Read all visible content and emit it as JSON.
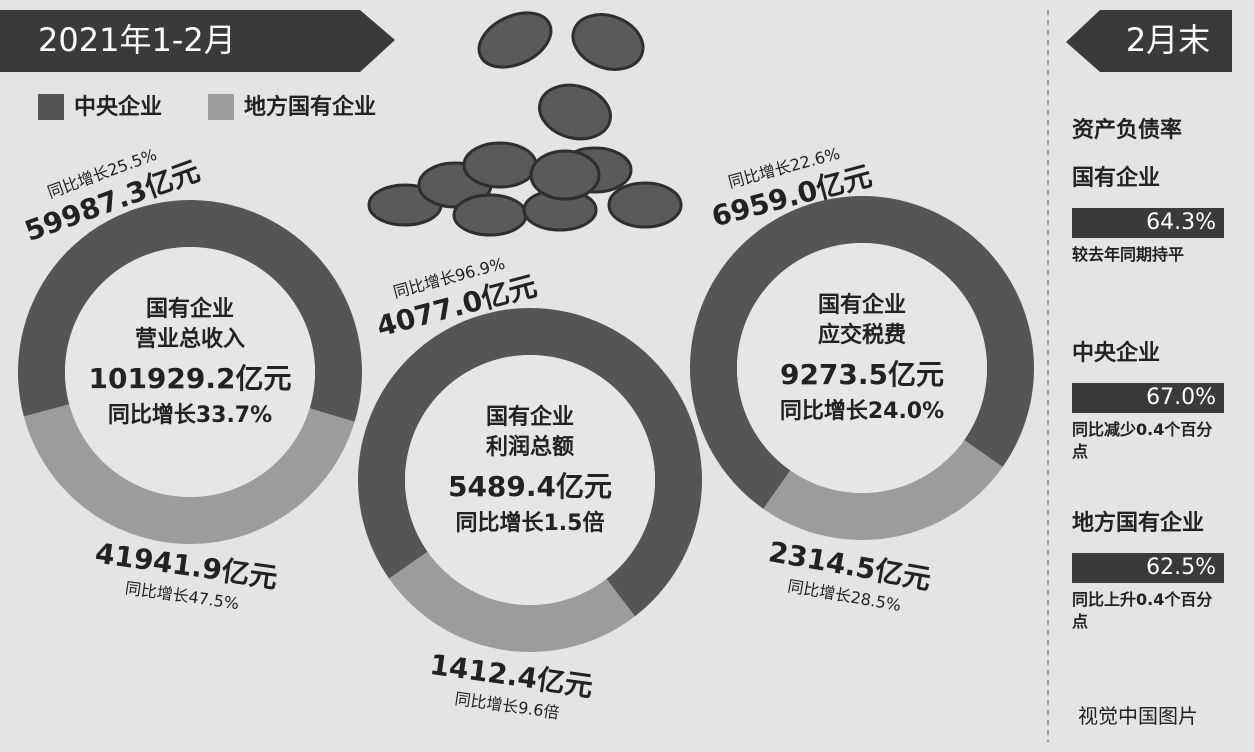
{
  "header": {
    "period": "2021年1-2月",
    "legend": [
      {
        "name": "中央企业",
        "color": "#555555"
      },
      {
        "name": "地方国有企业",
        "color": "#9c9c9c"
      }
    ]
  },
  "chart_data": [
    {
      "type": "donut",
      "title_lines": [
        "国有企业",
        "营业总收入"
      ],
      "total_label": "101929.2亿元",
      "total_growth": "同比增长33.7%",
      "values": [
        59987.3,
        41941.9
      ],
      "value_labels": [
        "59987.3亿元",
        "41941.9亿元"
      ],
      "growth_labels": [
        "同比增长25.5%",
        "同比增长47.5%"
      ]
    },
    {
      "type": "donut",
      "title_lines": [
        "国有企业",
        "利润总额"
      ],
      "total_label": "5489.4亿元",
      "total_growth": "同比增长1.5倍",
      "values": [
        4077.0,
        1412.4
      ],
      "value_labels": [
        "4077.0亿元",
        "1412.4亿元"
      ],
      "growth_labels": [
        "同比增长96.9%",
        "同比增长9.6倍"
      ]
    },
    {
      "type": "donut",
      "title_lines": [
        "国有企业",
        "应交税费"
      ],
      "total_label": "9273.5亿元",
      "total_growth": "同比增长24.0%",
      "values": [
        6959.0,
        2314.5
      ],
      "value_labels": [
        "6959.0亿元",
        "2314.5亿元"
      ],
      "growth_labels": [
        "同比增长22.6%",
        "同比增长28.5%"
      ]
    }
  ],
  "side_panel": {
    "title": "2月末",
    "subtitle": "资产负债率",
    "items": [
      {
        "name": "国有企业",
        "value": "64.3%",
        "note": "较去年同期持平"
      },
      {
        "name": "中央企业",
        "value": "67.0%",
        "note": "同比减少0.4个百分点"
      },
      {
        "name": "地方国有企业",
        "value": "62.5%",
        "note": "同比上升0.4个百分点"
      }
    ]
  },
  "credit": "视觉中国图片"
}
